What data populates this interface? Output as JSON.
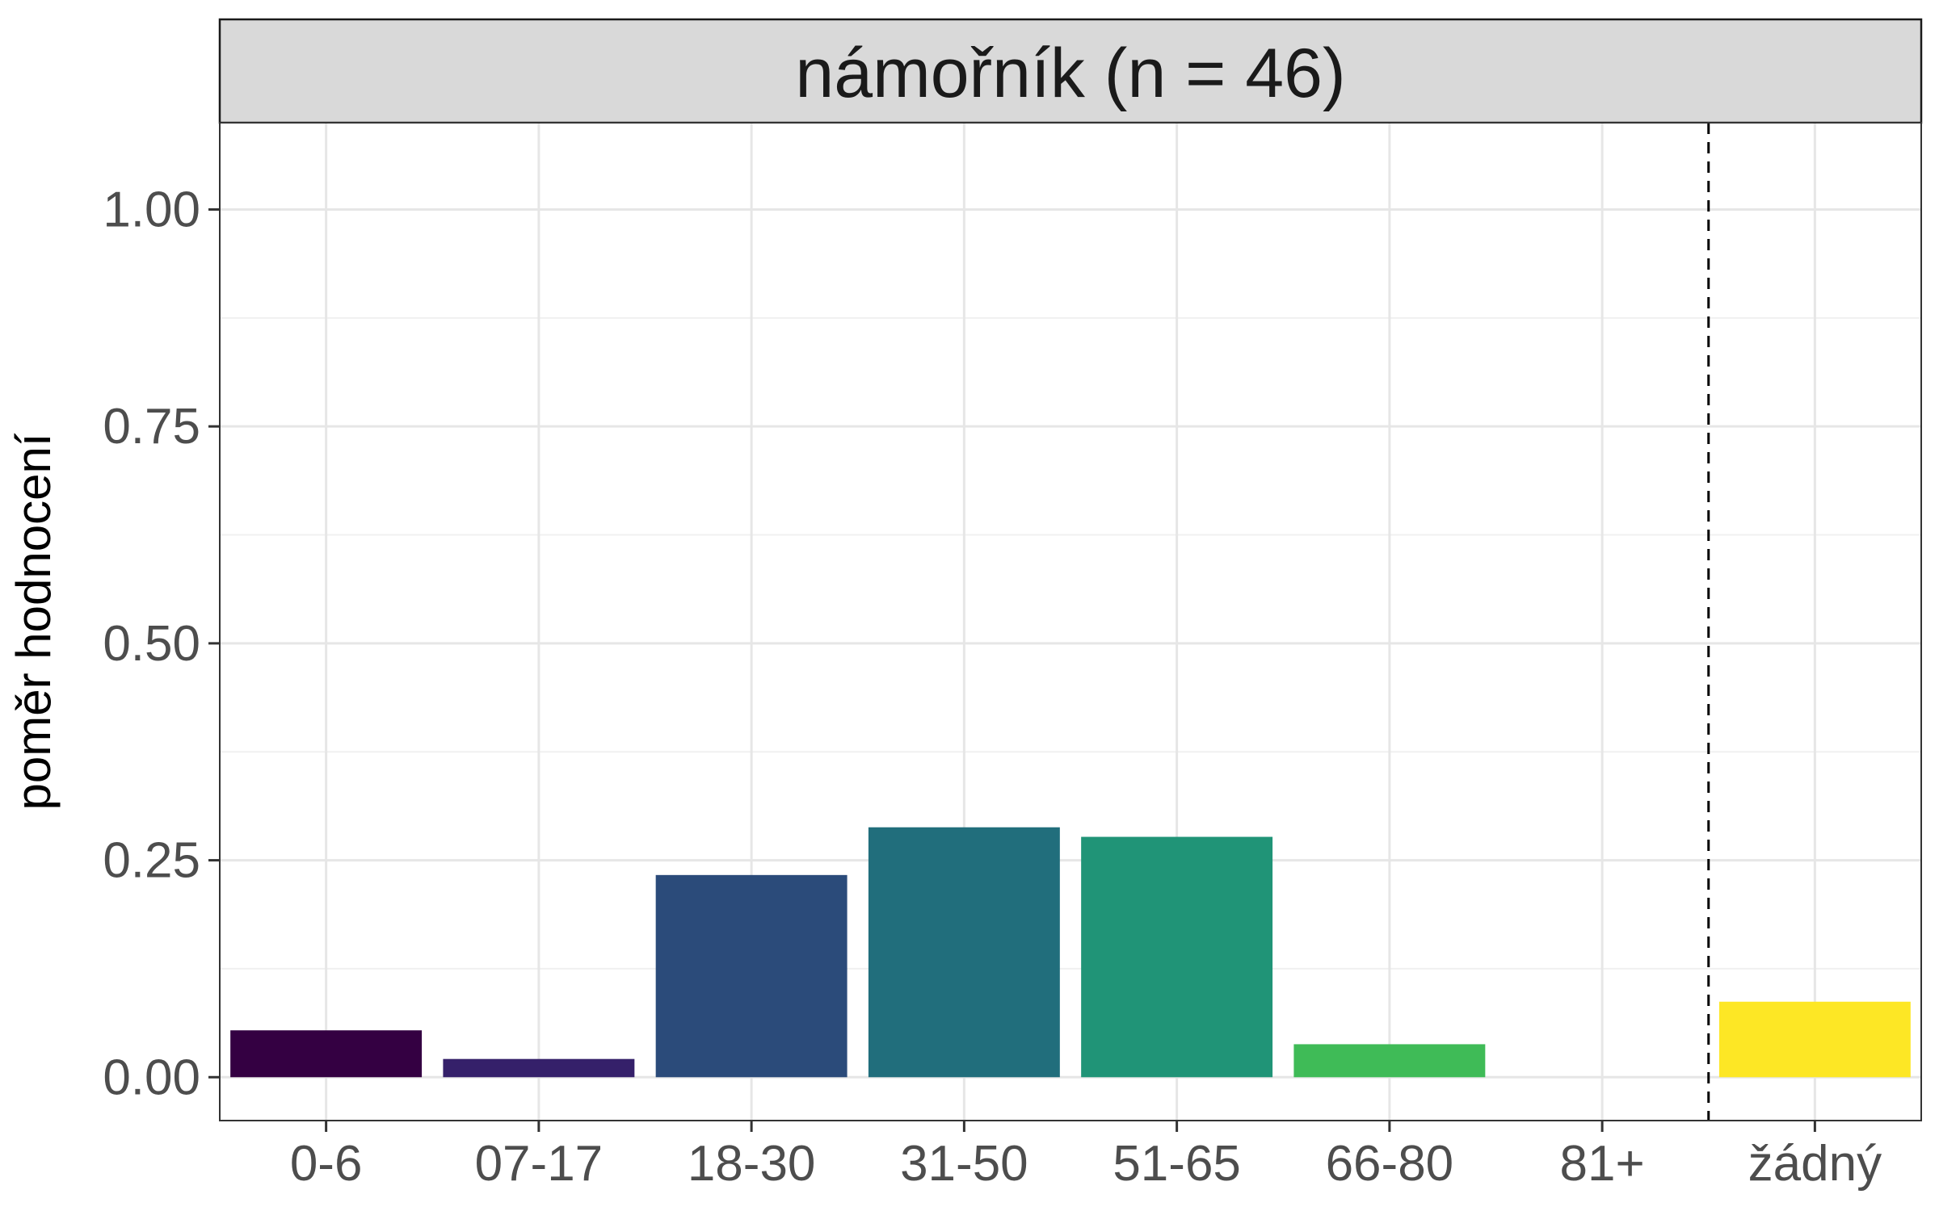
{
  "chart_data": {
    "type": "bar",
    "title": "námořník (n = 46)",
    "xlabel": "",
    "ylabel": "poměr hodnocení",
    "categories": [
      "0-6",
      "07-17",
      "18-30",
      "31-50",
      "51-65",
      "66-80",
      "81+",
      "žádný"
    ],
    "values": [
      0.054,
      0.021,
      0.233,
      0.288,
      0.277,
      0.038,
      0.0,
      0.087
    ],
    "colors": [
      "#340042",
      "#35206a",
      "#2b4b7a",
      "#216e7c",
      "#209477",
      "#3fbb57",
      "#8fd744",
      "#fde725"
    ],
    "ylim": [
      -0.05,
      1.1
    ],
    "yticks": [
      0.0,
      0.25,
      0.5,
      0.75,
      1.0
    ],
    "ytick_labels": [
      "0.00",
      "0.25",
      "0.50",
      "0.75",
      "1.00"
    ],
    "reference_line_between": [
      "81+",
      "žádný"
    ],
    "reference_line_style": "dashed",
    "grid": true,
    "legend": "none"
  }
}
